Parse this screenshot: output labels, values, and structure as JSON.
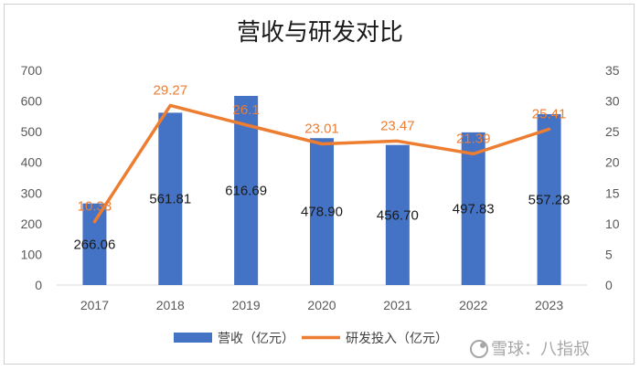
{
  "chart_data": {
    "type": "bar+line",
    "title": "营收与研发对比",
    "categories": [
      "2017",
      "2018",
      "2019",
      "2020",
      "2021",
      "2022",
      "2023"
    ],
    "series": [
      {
        "name": "营收（亿元）",
        "type": "bar",
        "axis": "left",
        "color": "#4472c4",
        "values": [
          266.06,
          561.81,
          616.69,
          478.9,
          456.7,
          497.83,
          557.28
        ],
        "labels": [
          "266.06",
          "561.81",
          "616.69",
          "478.90",
          "456.70",
          "497.83",
          "557.28"
        ]
      },
      {
        "name": "研发投入（亿元）",
        "type": "line",
        "axis": "right",
        "color": "#ed7d31",
        "values": [
          10.33,
          29.27,
          26.1,
          23.01,
          23.47,
          21.39,
          25.41
        ],
        "labels": [
          "10.33",
          "29.27",
          "26.1",
          "23.01",
          "23.47",
          "21.39",
          "25.41"
        ]
      }
    ],
    "y_left": {
      "min": 0,
      "max": 700,
      "step": 100
    },
    "y_right": {
      "min": 0,
      "max": 35,
      "step": 5
    },
    "legend_position": "bottom",
    "grid": false
  },
  "watermark": "雪球：八指叔"
}
